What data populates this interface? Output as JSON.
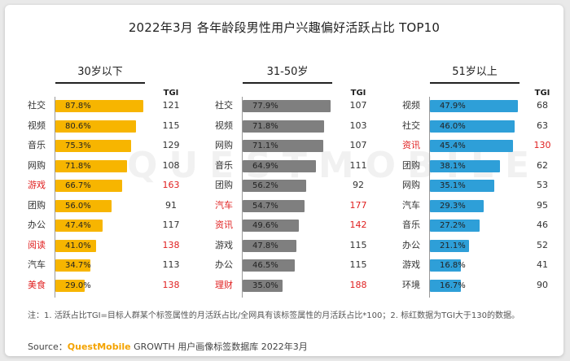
{
  "title": "2022年3月 各年龄段男性用户兴趣偏好活跃占比 TOP10",
  "watermark": "QUESTMOBILE",
  "tgi_header": "TGI",
  "note": "注：1. 活跃占比TGI=目标人群某个标签属性的月活跃占比/全网具有该标签属性的月活跃占比*100；2. 标红数据为TGI大于130的数据。",
  "source": {
    "prefix": "Source：",
    "brand": "QuestMobile",
    "rest": " GROWTH 用户画像标签数据库 2022年3月"
  },
  "chart_data": [
    {
      "type": "bar",
      "orientation": "horizontal",
      "title": "30岁以下",
      "color": "#f7b500",
      "value_unit": "%",
      "categories": [
        "社交",
        "视频",
        "音乐",
        "网购",
        "游戏",
        "团购",
        "办公",
        "阅读",
        "汽车",
        "美食"
      ],
      "values": [
        87.8,
        80.6,
        75.3,
        71.8,
        66.7,
        56.0,
        47.4,
        41.0,
        34.7,
        29.0
      ],
      "value_labels": [
        "87.8%",
        "80.6%",
        "75.3%",
        "71.8%",
        "66.7%",
        "56.0%",
        "47.4%",
        "41.0%",
        "34.7%",
        "29.0%"
      ],
      "tgi": [
        121,
        115,
        129,
        108,
        163,
        91,
        117,
        138,
        113,
        138
      ],
      "highlighted": [
        false,
        false,
        false,
        false,
        true,
        false,
        false,
        true,
        false,
        true
      ]
    },
    {
      "type": "bar",
      "orientation": "horizontal",
      "title": "31-50岁",
      "color": "#7f7f7f",
      "value_unit": "%",
      "categories": [
        "社交",
        "视频",
        "网购",
        "音乐",
        "团购",
        "汽车",
        "资讯",
        "游戏",
        "办公",
        "理财"
      ],
      "values": [
        77.9,
        71.8,
        71.1,
        64.9,
        56.2,
        54.7,
        49.6,
        47.8,
        46.5,
        35.0
      ],
      "value_labels": [
        "77.9%",
        "71.8%",
        "71.1%",
        "64.9%",
        "56.2%",
        "54.7%",
        "49.6%",
        "47.8%",
        "46.5%",
        "35.0%"
      ],
      "tgi": [
        107,
        103,
        107,
        111,
        92,
        177,
        142,
        115,
        115,
        188
      ],
      "highlighted": [
        false,
        false,
        false,
        false,
        false,
        true,
        true,
        false,
        false,
        true
      ]
    },
    {
      "type": "bar",
      "orientation": "horizontal",
      "title": "51岁以上",
      "color": "#2e9fd8",
      "value_unit": "%",
      "categories": [
        "视频",
        "社交",
        "资讯",
        "团购",
        "网购",
        "汽车",
        "音乐",
        "办公",
        "游戏",
        "环境"
      ],
      "values": [
        47.9,
        46.0,
        45.4,
        38.1,
        35.1,
        29.3,
        27.2,
        21.1,
        16.8,
        16.7
      ],
      "value_labels": [
        "47.9%",
        "46.0%",
        "45.4%",
        "38.1%",
        "35.1%",
        "29.3%",
        "27.2%",
        "21.1%",
        "16.8%",
        "16.7%"
      ],
      "tgi": [
        68,
        63,
        130,
        62,
        53,
        95,
        46,
        52,
        41,
        90
      ],
      "highlighted": [
        false,
        false,
        true,
        false,
        false,
        false,
        false,
        false,
        false,
        false
      ]
    }
  ]
}
